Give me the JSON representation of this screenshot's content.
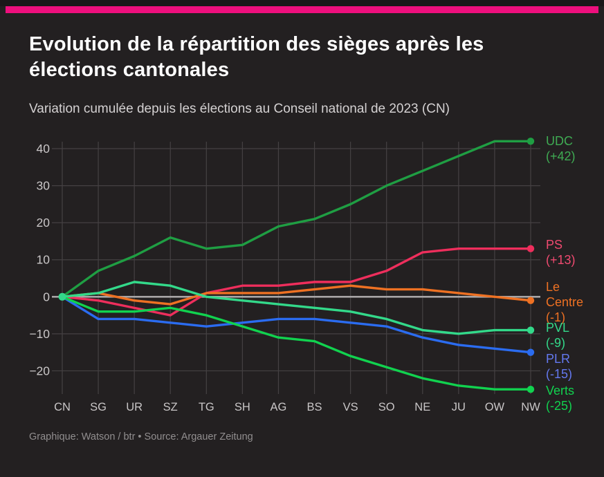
{
  "page": {
    "accent_color": "#ee0f7d",
    "background_color": "#232021",
    "title": "Evolution de la répartition des sièges après les élections cantonales",
    "subtitle": "Variation cumulée depuis les élections au Conseil national de 2023 (CN)",
    "source_note": "Graphique: Watson / btr • Source: Argauer Zeitung"
  },
  "chart_data": {
    "type": "line",
    "title": "Evolution de la répartition des sièges après les élections cantonales",
    "subtitle": "Variation cumulée depuis les élections au Conseil national de 2023 (CN)",
    "xlabel": "",
    "ylabel": "",
    "grid": true,
    "legend_position": "right",
    "categories": [
      "CN",
      "SG",
      "UR",
      "SZ",
      "TG",
      "SH",
      "AG",
      "BS",
      "VS",
      "SO",
      "NE",
      "JU",
      "OW",
      "NW"
    ],
    "y_ticks": [
      40,
      30,
      20,
      10,
      0,
      -10,
      -20
    ],
    "y_tick_labels": [
      "40",
      "30",
      "20",
      "10",
      "0",
      "−10",
      "−20"
    ],
    "ylim": [
      -27,
      44
    ],
    "series": [
      {
        "name": "UDC",
        "legend_lines": "UDC\n(+42)",
        "final_change": 42,
        "color": "#1f9e43",
        "label_color": "#3fab53",
        "values": [
          0,
          7,
          11,
          16,
          13,
          14,
          19,
          21,
          25,
          30,
          34,
          38,
          42,
          42
        ]
      },
      {
        "name": "PS",
        "legend_lines": "PS\n(+13)",
        "final_change": 13,
        "color": "#ee2e5c",
        "label_color": "#f04a70",
        "values": [
          0,
          -1,
          -3,
          -5,
          1,
          3,
          3,
          4,
          4,
          7,
          12,
          13,
          13,
          13
        ]
      },
      {
        "name": "Le Centre",
        "legend_lines": "Le\nCentre\n(-1)",
        "final_change": -1,
        "color": "#ee7123",
        "label_color": "#ee7123",
        "values": [
          0,
          1,
          -1,
          -2,
          1,
          1,
          1,
          2,
          3,
          2,
          2,
          1,
          0,
          -1
        ]
      },
      {
        "name": "PVL",
        "legend_lines": "PVL\n(-9)",
        "final_change": -9,
        "color": "#33d98a",
        "label_color": "#33d98a",
        "values": [
          0,
          1,
          4,
          3,
          0,
          -1,
          -2,
          -3,
          -4,
          -6,
          -9,
          -10,
          -9,
          -9
        ]
      },
      {
        "name": "PLR",
        "legend_lines": "PLR\n(-15)",
        "final_change": -15,
        "color": "#2b6cf0",
        "label_color": "#6479f0",
        "values": [
          0,
          -6,
          -6,
          -7,
          -8,
          -7,
          -6,
          -6,
          -7,
          -8,
          -11,
          -13,
          -14,
          -15
        ]
      },
      {
        "name": "Verts",
        "legend_lines": "Verts\n(-25)",
        "final_change": -25,
        "color": "#11d24f",
        "label_color": "#11d24f",
        "values": [
          0,
          -4,
          -4,
          -3,
          -5,
          -8,
          -11,
          -12,
          -16,
          -19,
          -22,
          -24,
          -25,
          -25
        ]
      }
    ]
  }
}
